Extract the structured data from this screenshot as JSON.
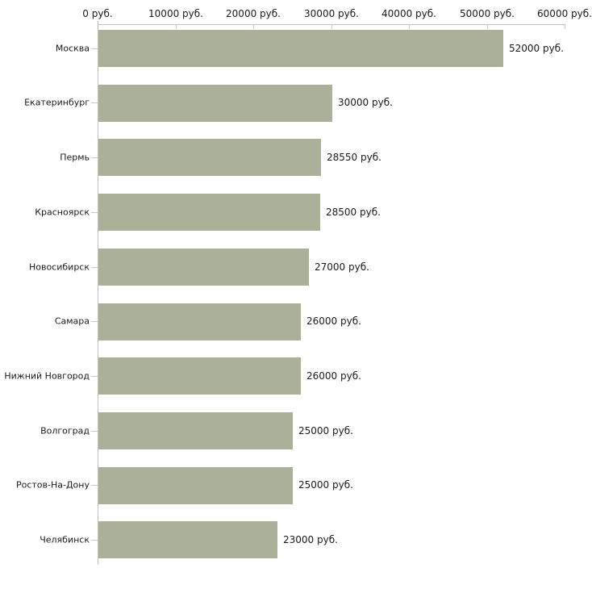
{
  "chart_data": {
    "type": "bar",
    "orientation": "horizontal",
    "title": "",
    "xlabel": "",
    "ylabel": "",
    "categories": [
      "Москва",
      "Екатеринбург",
      "Пермь",
      "Красноярск",
      "Новосибирск",
      "Самара",
      "Нижний Новгород",
      "Волгоград",
      "Ростов-На-Дону",
      "Челябинск"
    ],
    "values": [
      52000,
      30000,
      28550,
      28500,
      27000,
      26000,
      26000,
      25000,
      25000,
      23000
    ],
    "value_labels": [
      "52000 руб.",
      "30000 руб.",
      "28550 руб.",
      "28500 руб.",
      "27000 руб.",
      "26000 руб.",
      "26000 руб.",
      "25000 руб.",
      "25000 руб.",
      "23000 руб."
    ],
    "x_tick_values": [
      0,
      10000,
      20000,
      30000,
      40000,
      50000,
      60000
    ],
    "x_tick_labels": [
      "0 руб.",
      "10000 руб.",
      "20000 руб.",
      "30000 руб.",
      "40000 руб.",
      "50000 руб.",
      "60000 руб."
    ],
    "xlim": [
      0,
      60000
    ],
    "grid": false,
    "legend": false,
    "colors": {
      "bar": "#aab198",
      "axis_line": "#c2c2c2",
      "tick": "#ccd1a8",
      "text": "#1a1a1a",
      "background": "#ffffff"
    }
  }
}
